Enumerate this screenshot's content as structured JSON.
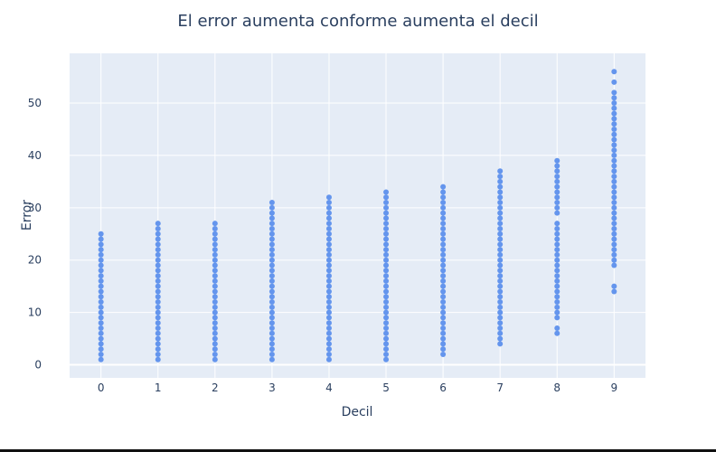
{
  "chart_data": {
    "type": "scatter",
    "title": "El error aumenta conforme aumenta el decil",
    "xlabel": "Decil",
    "ylabel": "Error",
    "xlim": [
      -0.55,
      9.55
    ],
    "ylim": [
      -2.5,
      59.5
    ],
    "x_ticks": [
      0,
      1,
      2,
      3,
      4,
      5,
      6,
      7,
      8,
      9
    ],
    "y_ticks": [
      0,
      10,
      20,
      30,
      40,
      50
    ],
    "grid": true,
    "legend": "none",
    "colors": {
      "marker": "#6495ed",
      "plot_bg": "#e5ecf6",
      "grid": "#ffffff",
      "text": "#2a3f5f"
    },
    "series": [
      {
        "points": [
          {
            "decil": 0,
            "errors": [
              1,
              2,
              3,
              4,
              5,
              6,
              7,
              8,
              9,
              10,
              11,
              12,
              13,
              14,
              15,
              16,
              17,
              18,
              19,
              20,
              21,
              22,
              23,
              24,
              25
            ]
          },
          {
            "decil": 1,
            "errors": [
              1,
              2,
              3,
              4,
              5,
              6,
              7,
              8,
              9,
              10,
              11,
              12,
              13,
              14,
              15,
              16,
              17,
              18,
              19,
              20,
              21,
              22,
              23,
              24,
              25,
              26,
              27
            ]
          },
          {
            "decil": 2,
            "errors": [
              1,
              2,
              3,
              4,
              5,
              6,
              7,
              8,
              9,
              10,
              11,
              12,
              13,
              14,
              15,
              16,
              17,
              18,
              19,
              20,
              21,
              22,
              23,
              24,
              25,
              26,
              27
            ]
          },
          {
            "decil": 3,
            "errors": [
              1,
              2,
              3,
              4,
              5,
              6,
              7,
              8,
              9,
              10,
              11,
              12,
              13,
              14,
              15,
              16,
              17,
              18,
              19,
              20,
              21,
              22,
              23,
              24,
              25,
              26,
              27,
              28,
              29,
              30,
              31
            ]
          },
          {
            "decil": 4,
            "errors": [
              1,
              2,
              3,
              4,
              5,
              6,
              7,
              8,
              9,
              10,
              11,
              12,
              13,
              14,
              15,
              16,
              17,
              18,
              19,
              20,
              21,
              22,
              23,
              24,
              25,
              26,
              27,
              28,
              29,
              30,
              31,
              32
            ]
          },
          {
            "decil": 5,
            "errors": [
              1,
              2,
              3,
              4,
              5,
              6,
              7,
              8,
              9,
              10,
              11,
              12,
              13,
              14,
              15,
              16,
              17,
              18,
              19,
              20,
              21,
              22,
              23,
              24,
              25,
              26,
              27,
              28,
              29,
              30,
              31,
              32,
              33
            ]
          },
          {
            "decil": 6,
            "errors": [
              2,
              3,
              4,
              5,
              6,
              7,
              8,
              9,
              10,
              11,
              12,
              13,
              14,
              15,
              16,
              17,
              18,
              19,
              20,
              21,
              22,
              23,
              24,
              25,
              26,
              27,
              28,
              29,
              30,
              31,
              32,
              33,
              34
            ]
          },
          {
            "decil": 7,
            "errors": [
              4,
              5,
              6,
              7,
              8,
              9,
              10,
              11,
              12,
              13,
              14,
              15,
              16,
              17,
              18,
              19,
              20,
              21,
              22,
              23,
              24,
              25,
              26,
              27,
              28,
              29,
              30,
              31,
              32,
              33,
              34,
              35,
              36,
              37
            ]
          },
          {
            "decil": 8,
            "errors": [
              6,
              7,
              9,
              10,
              11,
              12,
              13,
              14,
              15,
              16,
              17,
              18,
              19,
              20,
              21,
              22,
              23,
              24,
              25,
              26,
              27,
              29,
              30,
              31,
              32,
              33,
              34,
              35,
              36,
              37,
              38,
              39
            ]
          },
          {
            "decil": 9,
            "errors": [
              14,
              15,
              19,
              20,
              21,
              22,
              23,
              24,
              25,
              26,
              27,
              28,
              29,
              30,
              31,
              32,
              33,
              34,
              35,
              36,
              37,
              38,
              39,
              40,
              41,
              42,
              43,
              44,
              45,
              46,
              47,
              48,
              49,
              50,
              51,
              52,
              54,
              56
            ]
          }
        ]
      }
    ]
  }
}
